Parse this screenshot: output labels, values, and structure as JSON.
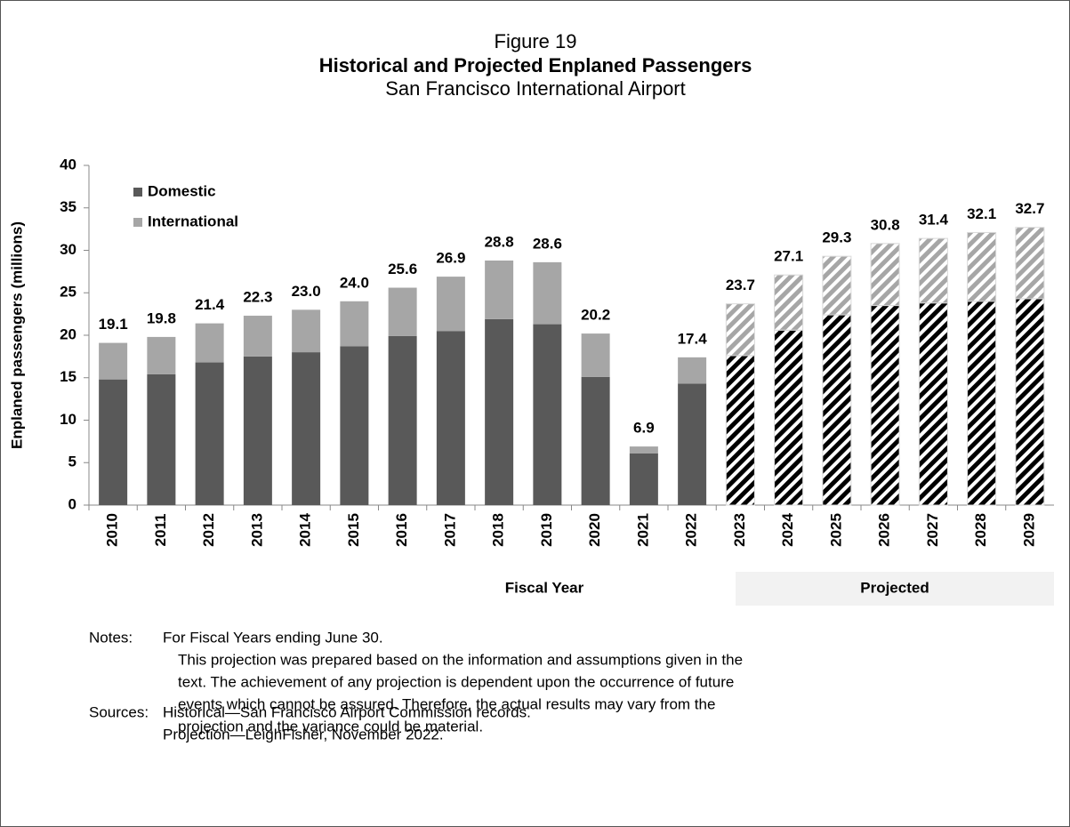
{
  "chart_data": {
    "type": "stacked_bar",
    "figure_label": "Figure 19",
    "title": "Historical and Projected Enplaned Passengers",
    "subtitle": "San Francisco International Airport",
    "y_axis_label": "Enplaned passengers (millions)",
    "x_axis_label": "Fiscal Year",
    "projected_label": "Projected",
    "hatch_from": "2023",
    "categories": [
      "2010",
      "2011",
      "2012",
      "2013",
      "2014",
      "2015",
      "2016",
      "2017",
      "2018",
      "2019",
      "2020",
      "2021",
      "2022",
      "2023",
      "2024",
      "2025",
      "2026",
      "2027",
      "2028",
      "2029"
    ],
    "series": [
      {
        "name": "Domestic",
        "color": "#595959",
        "hatch_color": "#000000",
        "values": [
          14.8,
          15.4,
          16.8,
          17.5,
          18.0,
          18.7,
          19.9,
          20.5,
          21.9,
          21.3,
          15.1,
          6.1,
          14.3,
          17.6,
          20.6,
          22.4,
          23.5,
          23.8,
          24.0,
          24.3
        ]
      },
      {
        "name": "International",
        "color": "#a6a6a6",
        "hatch_color": "#a6a6a6",
        "values": [
          4.3,
          4.4,
          4.6,
          4.8,
          5.0,
          5.3,
          5.7,
          6.4,
          6.9,
          7.3,
          5.1,
          0.8,
          3.1,
          6.1,
          6.5,
          6.9,
          7.3,
          7.6,
          8.1,
          8.4
        ]
      }
    ],
    "total_labels": [
      "19.1",
      "19.8",
      "21.4",
      "22.3",
      "23.0",
      "24.0",
      "25.6",
      "26.9",
      "28.8",
      "28.6",
      "20.2",
      "6.9",
      "17.4",
      "23.7",
      "27.1",
      "29.3",
      "30.8",
      "31.4",
      "32.1",
      "32.7"
    ],
    "ylim": [
      0,
      40
    ],
    "yticks": [
      0,
      5,
      10,
      15,
      20,
      25,
      30,
      35,
      40
    ],
    "grid": false,
    "legend": "upper left"
  },
  "notes": {
    "label": "Notes:",
    "lines": [
      "For Fiscal Years ending June 30.",
      "This projection was prepared based on the information and assumptions given in the",
      "text.  The achievement of any projection is dependent upon the occurrence of future",
      "events which cannot be assured.  Therefore, the actual results may vary from the",
      "projection and the variance could be material."
    ]
  },
  "sources": {
    "label": "Sources:",
    "lines": [
      "Historical—San Francisco Airport Commission records.",
      "Projection—LeighFisher, November 2022."
    ]
  }
}
